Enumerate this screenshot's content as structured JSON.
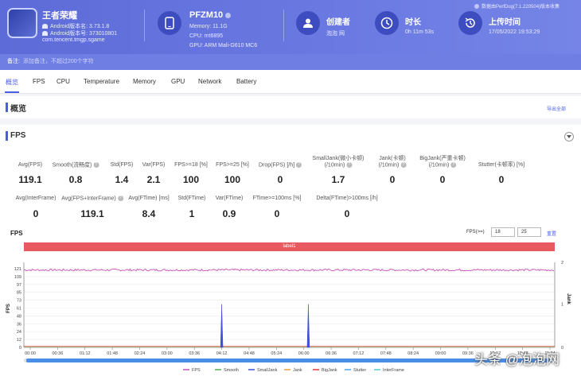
{
  "app": {
    "name": "王者荣耀",
    "version_label": "Android版本名: 3.73.1.8",
    "version_code": "Android版本号: 373010801",
    "package": "com.tencent.tmgp.sgame"
  },
  "device": {
    "model": "PFZM10",
    "memory": "Memory: 11.1G",
    "cpu": "CPU: mt6895",
    "gpu": "GPU: ARM Mali-G610 MC6"
  },
  "creator": {
    "label": "创建者",
    "value": "泡泡 网"
  },
  "duration": {
    "label": "时长",
    "value": "0h 11m 53s"
  },
  "upload": {
    "label": "上传时间",
    "value": "17/05/2022 19:53:29"
  },
  "data_source": "数据由PerfDog(7.1.220504)版本收集",
  "note": {
    "label": "备注:",
    "placeholder": "添加备注，不超过200个字符"
  },
  "tabs": [
    "概览",
    "FPS",
    "CPU",
    "Temperature",
    "Memory",
    "GPU",
    "Network",
    "Battery"
  ],
  "overview": {
    "title": "概览",
    "export": "导出全部"
  },
  "fps_section": {
    "title": "FPS",
    "row1": [
      {
        "label": "Avg(FPS)",
        "value": "119.1"
      },
      {
        "label": "Smooth(流畅度)",
        "value": "0.8",
        "help": true
      },
      {
        "label": "Std(FPS)",
        "value": "1.4"
      },
      {
        "label": "Var(FPS)",
        "value": "2.1"
      },
      {
        "label": "FPS>=18 [%]",
        "value": "100"
      },
      {
        "label": "FPS>=25 [%]",
        "value": "100"
      },
      {
        "label": "Drop(FPS) [/h]",
        "value": "0",
        "help": true
      },
      {
        "label": "SmallJank(微小卡顿)",
        "label2": "(/10min)",
        "value": "1.7",
        "help": true
      },
      {
        "label": "Jank(卡顿)",
        "label2": "(/10min)",
        "value": "0",
        "help": true
      },
      {
        "label": "BigJank(严重卡顿)",
        "label2": "(/10min)",
        "value": "0",
        "help": true
      },
      {
        "label": "Stutter(卡顿率) [%]",
        "value": "0"
      }
    ],
    "row2": [
      {
        "label": "Avg(InterFrame)",
        "value": "0"
      },
      {
        "label": "Avg(FPS+InterFrame)",
        "value": "119.1",
        "help": true
      },
      {
        "label": "Avg(FTime) [ms]",
        "value": "8.4"
      },
      {
        "label": "Std(FTime)",
        "value": "1"
      },
      {
        "label": "Var(FTime)",
        "value": "0.9"
      },
      {
        "label": "FTime>=100ms [%]",
        "value": "0"
      },
      {
        "label": "Delta(FTime)>100ms [/h]",
        "value": "0"
      }
    ]
  },
  "chart_controls": {
    "title": "FPS",
    "filter_label": "FPS(>=)",
    "min": "18",
    "max": "25",
    "reset": "重置"
  },
  "chart_data": {
    "type": "line",
    "band_label": "label1",
    "x_ticks": [
      "00:00",
      "00:36",
      "01:12",
      "01:48",
      "02:24",
      "03:00",
      "03:36",
      "04:12",
      "04:48",
      "05:24",
      "06:00",
      "06:36",
      "07:12",
      "07:48",
      "08:24",
      "09:00",
      "09:36",
      "10:12",
      "10:48",
      "11:24"
    ],
    "y_ticks": [
      "0",
      "12",
      "24",
      "36",
      "48",
      "61",
      "73",
      "85",
      "97",
      "109",
      "121"
    ],
    "ylabel": "FPS",
    "y2label": "Jank",
    "y2_ticks": [
      "0",
      "1",
      "2"
    ],
    "ylim": [
      0,
      121
    ],
    "y2lim": [
      0,
      2
    ],
    "series": [
      {
        "name": "FPS",
        "color": "#c94fb5",
        "baseline": 119
      },
      {
        "name": "Smooth",
        "color": "#4caf50"
      },
      {
        "name": "SmallJank",
        "color": "#3f51d6",
        "spikes_at": [
          "04:12",
          "06:06"
        ],
        "spike_value": 1
      },
      {
        "name": "Jank",
        "color": "#f0a03c"
      },
      {
        "name": "BigJank",
        "color": "#e53935"
      },
      {
        "name": "Stutter",
        "color": "#42a5f5"
      },
      {
        "name": "InterFrame",
        "color": "#4dd0c8"
      }
    ]
  },
  "watermark": "头条 @泡泡网"
}
